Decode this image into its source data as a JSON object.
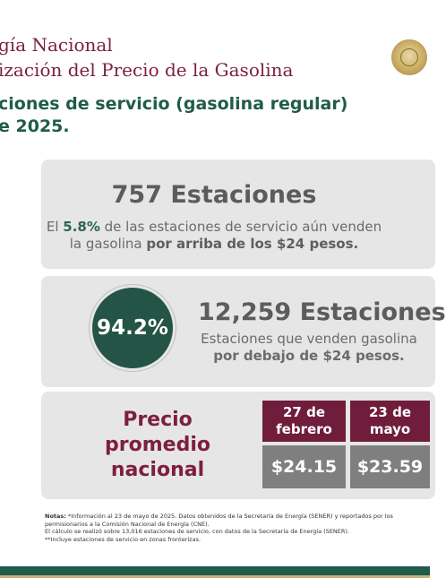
{
  "header": {
    "title_line1": "gía Nacional",
    "title_line2": "ización del Precio de la Gasolina",
    "subtitle_line1": "ciones de servicio (gasolina regular)",
    "subtitle_line2": "e 2025."
  },
  "card_above": {
    "title": "757 Estaciones",
    "line1_prefix": "El ",
    "line1_highlight": "5.8%",
    "line1_suffix": " de las estaciones de servicio aún venden",
    "line2_prefix": "la gasolina ",
    "line2_bold": "por arriba de los $24 pesos."
  },
  "card_below": {
    "percent": "94.2%",
    "title": "12,259 Estaciones",
    "line1": "Estaciones que venden gasolina",
    "line2": "por debajo de $24 pesos."
  },
  "price_table": {
    "label": "Precio promedio nacional",
    "col1_header_line1": "27 de",
    "col1_header_line2": "febrero",
    "col2_header_line1": "23 de",
    "col2_header_line2": "mayo",
    "col1_value": "$24.15",
    "col2_value": "$23.59"
  },
  "notes": {
    "label": "Notas:",
    "line1": " *Información al 23 de mayo de 2025. Datos obtenidos de la Secretaría de Energía (SENER) y reportados por los permisionarios a la Comisión Nacional de Energía (CNE).",
    "line2": "El cálculo se realizó sobre 13,016 estaciones de servicio, con datos de la Secretaría de Energía (SENER).",
    "line3": "**Incluye estaciones de servicio en zonas fronterizas."
  },
  "colors": {
    "brand_guinda": "#7d1f3d",
    "brand_green": "#1f5c4a",
    "card_gray": "#e6e6e6"
  }
}
